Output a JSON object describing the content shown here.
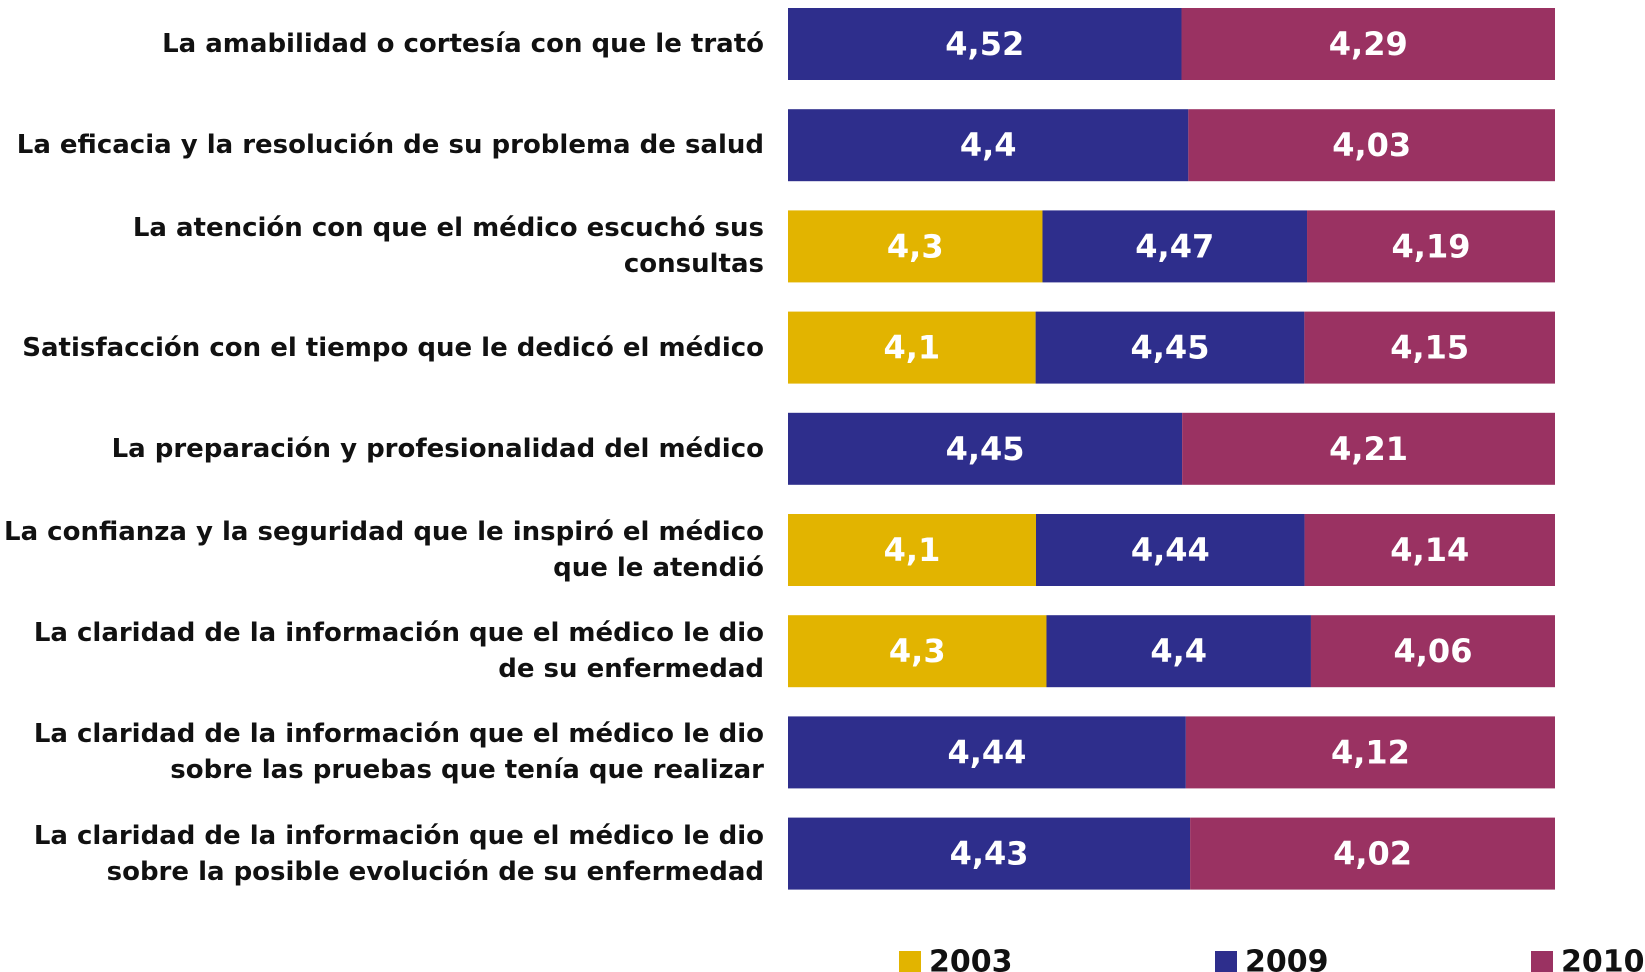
{
  "chart_data": {
    "type": "stacked_bar_100",
    "orientation": "horizontal",
    "categories": [
      "La amabilidad o cortesía con que le trató",
      "La eficacia y la resolución de su problema de salud",
      "La atención con que el médico escuchó sus consultas",
      "Satisfacción con el tiempo que le dedicó el médico",
      "La preparación y profesionalidad del médico",
      "La confianza y la seguridad que le inspiró el médico que le atendió",
      "La claridad de la información que el médico le dio de su enfermedad",
      "La claridad de la información que el médico le dio sobre las pruebas que tenía que realizar",
      "La claridad de la información que el médico le dio sobre la posible evolución de su enfermedad"
    ],
    "series": [
      {
        "name": "2003",
        "color": "#e2b400",
        "values": [
          null,
          null,
          4.3,
          4.1,
          null,
          4.1,
          4.3,
          null,
          null
        ],
        "value_labels": [
          null,
          null,
          "4,3",
          "4,1",
          null,
          "4,1",
          "4,3",
          null,
          null
        ]
      },
      {
        "name": "2009",
        "color": "#2e2e8c",
        "values": [
          4.52,
          4.4,
          4.47,
          4.45,
          4.45,
          4.44,
          4.4,
          4.44,
          4.43
        ],
        "value_labels": [
          "4,52",
          "4,4",
          "4,47",
          "4,45",
          "4,45",
          "4,44",
          "4,4",
          "4,44",
          "4,43"
        ]
      },
      {
        "name": "2010",
        "color": "#9a3262",
        "values": [
          4.29,
          4.03,
          4.19,
          4.15,
          4.21,
          4.14,
          4.06,
          4.12,
          4.02
        ],
        "value_labels": [
          "4,29",
          "4,03",
          "4,19",
          "4,15",
          "4,21",
          "4,14",
          "4,06",
          "4,12",
          "4,02"
        ]
      }
    ],
    "legend": "bottom"
  }
}
